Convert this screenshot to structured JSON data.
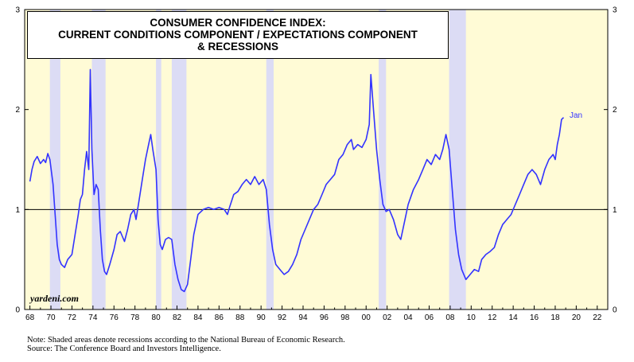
{
  "chart_data": {
    "type": "line",
    "title_lines": [
      "CONSUMER CONFIDENCE INDEX:",
      "CURRENT CONDITIONS COMPONENT / EXPECTATIONS COMPONENT",
      "& RECESSIONS"
    ],
    "xlim": [
      1967.5,
      2023
    ],
    "ylim": [
      0,
      3
    ],
    "x_ticks": [
      "68",
      "70",
      "72",
      "74",
      "76",
      "78",
      "80",
      "82",
      "84",
      "86",
      "88",
      "90",
      "92",
      "94",
      "96",
      "98",
      "00",
      "02",
      "04",
      "06",
      "08",
      "10",
      "12",
      "14",
      "16",
      "18",
      "20",
      "22"
    ],
    "y_ticks_left": [
      "0",
      "1",
      "2",
      "3"
    ],
    "y_ticks_right": [
      "0",
      "1",
      "2",
      "3"
    ],
    "reference_line": 1,
    "recessions": [
      [
        1969.9,
        1970.9
      ],
      [
        1973.9,
        1975.2
      ],
      [
        1980.0,
        1980.5
      ],
      [
        1981.5,
        1982.9
      ],
      [
        1990.5,
        1991.2
      ],
      [
        2001.2,
        2001.9
      ],
      [
        2007.9,
        2009.5
      ]
    ],
    "series": [
      {
        "color": "#3333ff",
        "points": [
          [
            1968.0,
            1.28
          ],
          [
            1968.2,
            1.4
          ],
          [
            1968.4,
            1.48
          ],
          [
            1968.7,
            1.53
          ],
          [
            1969.0,
            1.46
          ],
          [
            1969.3,
            1.5
          ],
          [
            1969.5,
            1.47
          ],
          [
            1969.7,
            1.56
          ],
          [
            1969.9,
            1.5
          ],
          [
            1970.2,
            1.25
          ],
          [
            1970.4,
            0.95
          ],
          [
            1970.6,
            0.65
          ],
          [
            1970.8,
            0.5
          ],
          [
            1971.0,
            0.45
          ],
          [
            1971.3,
            0.42
          ],
          [
            1971.6,
            0.5
          ],
          [
            1972.0,
            0.55
          ],
          [
            1972.3,
            0.75
          ],
          [
            1972.6,
            0.95
          ],
          [
            1972.8,
            1.1
          ],
          [
            1973.0,
            1.15
          ],
          [
            1973.2,
            1.4
          ],
          [
            1973.4,
            1.58
          ],
          [
            1973.6,
            1.4
          ],
          [
            1973.75,
            2.4
          ],
          [
            1973.9,
            1.6
          ],
          [
            1974.1,
            1.15
          ],
          [
            1974.3,
            1.25
          ],
          [
            1974.5,
            1.2
          ],
          [
            1974.7,
            0.8
          ],
          [
            1974.9,
            0.5
          ],
          [
            1975.1,
            0.38
          ],
          [
            1975.3,
            0.35
          ],
          [
            1975.6,
            0.45
          ],
          [
            1976.0,
            0.6
          ],
          [
            1976.3,
            0.75
          ],
          [
            1976.6,
            0.78
          ],
          [
            1977.0,
            0.68
          ],
          [
            1977.3,
            0.8
          ],
          [
            1977.6,
            0.95
          ],
          [
            1977.9,
            1.0
          ],
          [
            1978.1,
            0.9
          ],
          [
            1978.4,
            1.1
          ],
          [
            1978.7,
            1.3
          ],
          [
            1979.0,
            1.5
          ],
          [
            1979.3,
            1.65
          ],
          [
            1979.5,
            1.75
          ],
          [
            1979.7,
            1.6
          ],
          [
            1980.0,
            1.4
          ],
          [
            1980.2,
            0.9
          ],
          [
            1980.4,
            0.65
          ],
          [
            1980.6,
            0.6
          ],
          [
            1980.9,
            0.7
          ],
          [
            1981.2,
            0.72
          ],
          [
            1981.5,
            0.7
          ],
          [
            1981.8,
            0.45
          ],
          [
            1982.1,
            0.3
          ],
          [
            1982.4,
            0.2
          ],
          [
            1982.7,
            0.18
          ],
          [
            1983.0,
            0.25
          ],
          [
            1983.3,
            0.5
          ],
          [
            1983.6,
            0.75
          ],
          [
            1984.0,
            0.95
          ],
          [
            1984.5,
            1.0
          ],
          [
            1985.0,
            1.02
          ],
          [
            1985.5,
            1.0
          ],
          [
            1986.0,
            1.02
          ],
          [
            1986.5,
            1.0
          ],
          [
            1986.8,
            0.95
          ],
          [
            1987.0,
            1.02
          ],
          [
            1987.4,
            1.15
          ],
          [
            1987.8,
            1.18
          ],
          [
            1988.2,
            1.25
          ],
          [
            1988.6,
            1.3
          ],
          [
            1989.0,
            1.25
          ],
          [
            1989.4,
            1.33
          ],
          [
            1989.8,
            1.25
          ],
          [
            1990.2,
            1.3
          ],
          [
            1990.5,
            1.2
          ],
          [
            1990.8,
            0.85
          ],
          [
            1991.1,
            0.6
          ],
          [
            1991.4,
            0.45
          ],
          [
            1991.8,
            0.4
          ],
          [
            1992.2,
            0.35
          ],
          [
            1992.6,
            0.38
          ],
          [
            1993.0,
            0.45
          ],
          [
            1993.4,
            0.55
          ],
          [
            1993.8,
            0.7
          ],
          [
            1994.2,
            0.8
          ],
          [
            1994.6,
            0.9
          ],
          [
            1995.0,
            1.0
          ],
          [
            1995.4,
            1.05
          ],
          [
            1995.8,
            1.15
          ],
          [
            1996.2,
            1.25
          ],
          [
            1996.6,
            1.3
          ],
          [
            1997.0,
            1.35
          ],
          [
            1997.4,
            1.5
          ],
          [
            1997.8,
            1.55
          ],
          [
            1998.2,
            1.65
          ],
          [
            1998.6,
            1.7
          ],
          [
            1998.8,
            1.6
          ],
          [
            1999.2,
            1.65
          ],
          [
            1999.6,
            1.62
          ],
          [
            2000.0,
            1.7
          ],
          [
            2000.3,
            1.85
          ],
          [
            2000.45,
            2.35
          ],
          [
            2000.7,
            2.0
          ],
          [
            2001.0,
            1.6
          ],
          [
            2001.3,
            1.3
          ],
          [
            2001.6,
            1.05
          ],
          [
            2001.9,
            0.98
          ],
          [
            2002.2,
            1.0
          ],
          [
            2002.6,
            0.9
          ],
          [
            2003.0,
            0.75
          ],
          [
            2003.3,
            0.7
          ],
          [
            2003.7,
            0.9
          ],
          [
            2004.0,
            1.05
          ],
          [
            2004.5,
            1.2
          ],
          [
            2005.0,
            1.3
          ],
          [
            2005.4,
            1.4
          ],
          [
            2005.8,
            1.5
          ],
          [
            2006.2,
            1.45
          ],
          [
            2006.6,
            1.55
          ],
          [
            2007.0,
            1.5
          ],
          [
            2007.3,
            1.6
          ],
          [
            2007.6,
            1.75
          ],
          [
            2007.9,
            1.6
          ],
          [
            2008.2,
            1.2
          ],
          [
            2008.5,
            0.8
          ],
          [
            2008.8,
            0.55
          ],
          [
            2009.1,
            0.4
          ],
          [
            2009.5,
            0.3
          ],
          [
            2009.9,
            0.35
          ],
          [
            2010.3,
            0.4
          ],
          [
            2010.7,
            0.38
          ],
          [
            2011.0,
            0.5
          ],
          [
            2011.4,
            0.55
          ],
          [
            2011.8,
            0.58
          ],
          [
            2012.2,
            0.62
          ],
          [
            2012.6,
            0.75
          ],
          [
            2013.0,
            0.85
          ],
          [
            2013.4,
            0.9
          ],
          [
            2013.8,
            0.95
          ],
          [
            2014.2,
            1.05
          ],
          [
            2014.6,
            1.15
          ],
          [
            2015.0,
            1.25
          ],
          [
            2015.4,
            1.35
          ],
          [
            2015.8,
            1.4
          ],
          [
            2016.2,
            1.35
          ],
          [
            2016.6,
            1.25
          ],
          [
            2017.0,
            1.4
          ],
          [
            2017.4,
            1.5
          ],
          [
            2017.8,
            1.55
          ],
          [
            2018.0,
            1.5
          ],
          [
            2018.2,
            1.65
          ],
          [
            2018.4,
            1.75
          ],
          [
            2018.6,
            1.9
          ],
          [
            2018.8,
            1.92
          ]
        ]
      }
    ],
    "last_label": "Jan",
    "watermark": "yardeni.com",
    "notes": [
      "Note: Shaded areas denote recessions according to the National Bureau of Economic Research.",
      "Source: The Conference Board and Investors Intelligence."
    ]
  }
}
